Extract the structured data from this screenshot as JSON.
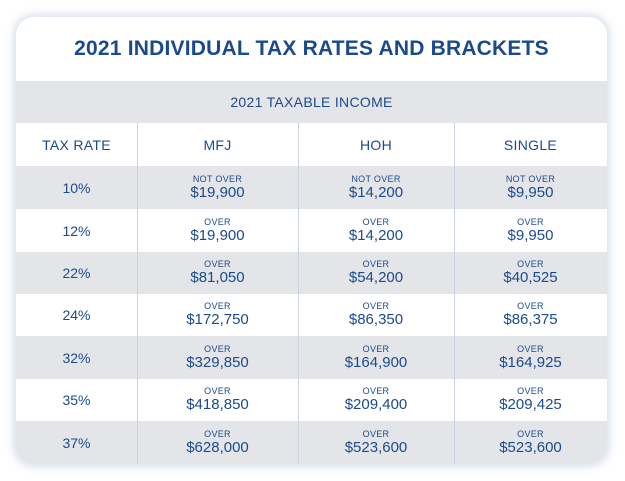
{
  "title": "2021 INDIVIDUAL TAX RATES AND BRACKETS",
  "subheader": "2021 TAXABLE INCOME",
  "columns": [
    "TAX RATE",
    "MFJ",
    "HOH",
    "SINGLE"
  ],
  "rows": [
    {
      "rate": "10%",
      "mfj": {
        "qualifier": "NOT OVER",
        "amount": "$19,900"
      },
      "hoh": {
        "qualifier": "NOT OVER",
        "amount": "$14,200"
      },
      "single": {
        "qualifier": "NOT OVER",
        "amount": "$9,950"
      }
    },
    {
      "rate": "12%",
      "mfj": {
        "qualifier": "OVER",
        "amount": "$19,900"
      },
      "hoh": {
        "qualifier": "OVER",
        "amount": "$14,200"
      },
      "single": {
        "qualifier": "OVER",
        "amount": "$9,950"
      }
    },
    {
      "rate": "22%",
      "mfj": {
        "qualifier": "OVER",
        "amount": "$81,050"
      },
      "hoh": {
        "qualifier": "OVER",
        "amount": "$54,200"
      },
      "single": {
        "qualifier": "OVER",
        "amount": "$40,525"
      }
    },
    {
      "rate": "24%",
      "mfj": {
        "qualifier": "OVER",
        "amount": "$172,750"
      },
      "hoh": {
        "qualifier": "OVER",
        "amount": "$86,350"
      },
      "single": {
        "qualifier": "OVER",
        "amount": "$86,375"
      }
    },
    {
      "rate": "32%",
      "mfj": {
        "qualifier": "OVER",
        "amount": "$329,850"
      },
      "hoh": {
        "qualifier": "OVER",
        "amount": "$164,900"
      },
      "single": {
        "qualifier": "OVER",
        "amount": "$164,925"
      }
    },
    {
      "rate": "35%",
      "mfj": {
        "qualifier": "OVER",
        "amount": "$418,850"
      },
      "hoh": {
        "qualifier": "OVER",
        "amount": "$209,400"
      },
      "single": {
        "qualifier": "OVER",
        "amount": "$209,425"
      }
    },
    {
      "rate": "37%",
      "mfj": {
        "qualifier": "OVER",
        "amount": "$628,000"
      },
      "hoh": {
        "qualifier": "OVER",
        "amount": "$523,600"
      },
      "single": {
        "qualifier": "OVER",
        "amount": "$523,600"
      }
    }
  ],
  "colors": {
    "text": "#1b4a8c",
    "band": "#e4e5e9",
    "divider": "#c9d2e3",
    "background": "#ffffff"
  }
}
